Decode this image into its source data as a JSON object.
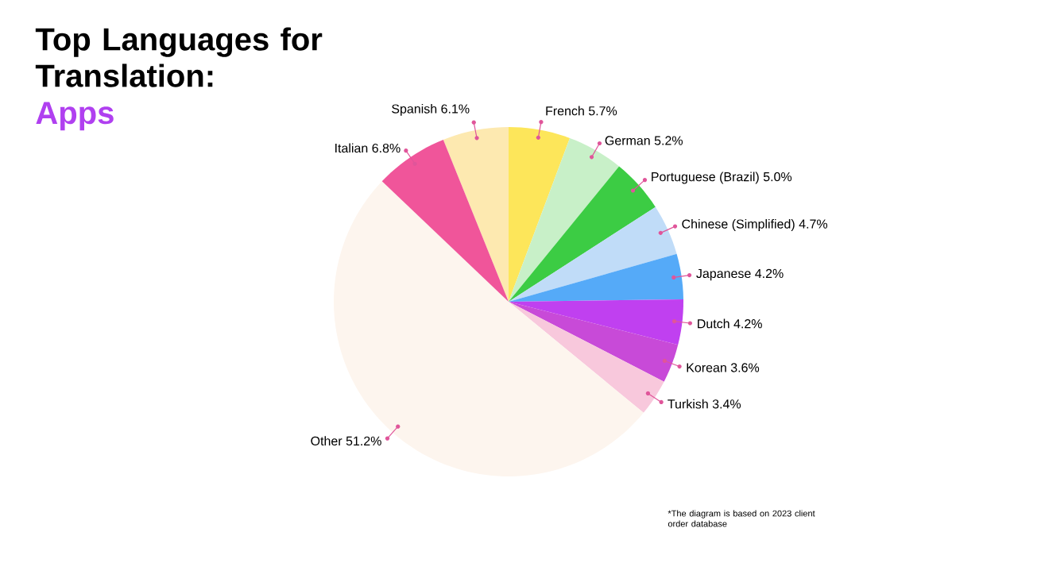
{
  "chart_data": {
    "type": "pie",
    "title": "Top Languages for Translation:",
    "subtitle": "Apps",
    "categories": [
      "Spanish",
      "French",
      "German",
      "Portuguese (Brazil)",
      "Chinese (Simplified)",
      "Japanese",
      "Dutch",
      "Korean",
      "Turkish",
      "Other",
      "Italian"
    ],
    "values": [
      6.1,
      5.7,
      5.2,
      5.0,
      4.7,
      4.2,
      4.2,
      3.6,
      3.4,
      51.2,
      6.8
    ],
    "colors": [
      "#fde9b0",
      "#fde65a",
      "#c8f0c8",
      "#3ccc44",
      "#c0dcf8",
      "#55aaf8",
      "#c040f0",
      "#c84ad8",
      "#f8c8dc",
      "#fdf5ee",
      "#f0559a"
    ],
    "value_labels": [
      "6.1%",
      "5.7%",
      "5.2%",
      "5.0%",
      "4.7%",
      "4.2%",
      "4.2%",
      "3.6%",
      "3.4%",
      "51.2%",
      "6.8%"
    ],
    "annotations": [
      "*The diagram is based on 2023 client order database"
    ]
  }
}
